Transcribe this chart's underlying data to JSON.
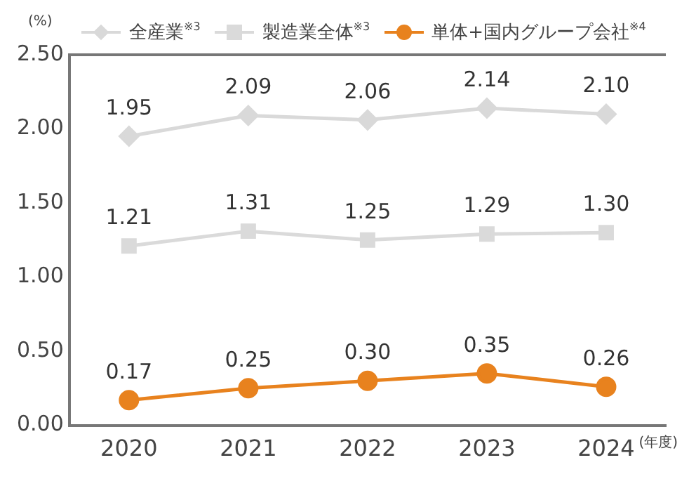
{
  "chart_data": {
    "type": "line",
    "ylabel": "(%)",
    "xlabel": "(年度)",
    "categories": [
      "2020",
      "2021",
      "2022",
      "2023",
      "2024"
    ],
    "series": [
      {
        "name": "全産業$^{※3}$",
        "color": "#d9d9d9",
        "marker": "diamond",
        "values": [
          1.95,
          2.09,
          2.06,
          2.14,
          2.1
        ],
        "value_labels": [
          "1.95",
          "2.09",
          "2.06",
          "2.14",
          "2.10"
        ]
      },
      {
        "name": "製造業全体$^{※3}$",
        "color": "#dadada",
        "marker": "square",
        "values": [
          1.21,
          1.31,
          1.25,
          1.29,
          1.3
        ],
        "value_labels": [
          "1.21",
          "1.31",
          "1.25",
          "1.29",
          "1.30"
        ]
      },
      {
        "name": "単体+国内グループ会社$^{※4}$",
        "color": "#e8821e",
        "marker": "circle",
        "values": [
          0.17,
          0.25,
          0.3,
          0.35,
          0.26
        ],
        "value_labels": [
          "0.17",
          "0.25",
          "0.30",
          "0.35",
          "0.26"
        ]
      }
    ],
    "ylim": [
      0,
      2.5
    ],
    "yticks": [
      {
        "value": 0,
        "label": "0.00"
      },
      {
        "value": 0.5,
        "label": "0.50"
      },
      {
        "value": 1,
        "label": "1.00"
      },
      {
        "value": 1.5,
        "label": "1.50"
      },
      {
        "value": 2,
        "label": "2.00"
      },
      {
        "value": 2.5,
        "label": "2.50"
      }
    ],
    "legend": "top",
    "grid": false
  }
}
